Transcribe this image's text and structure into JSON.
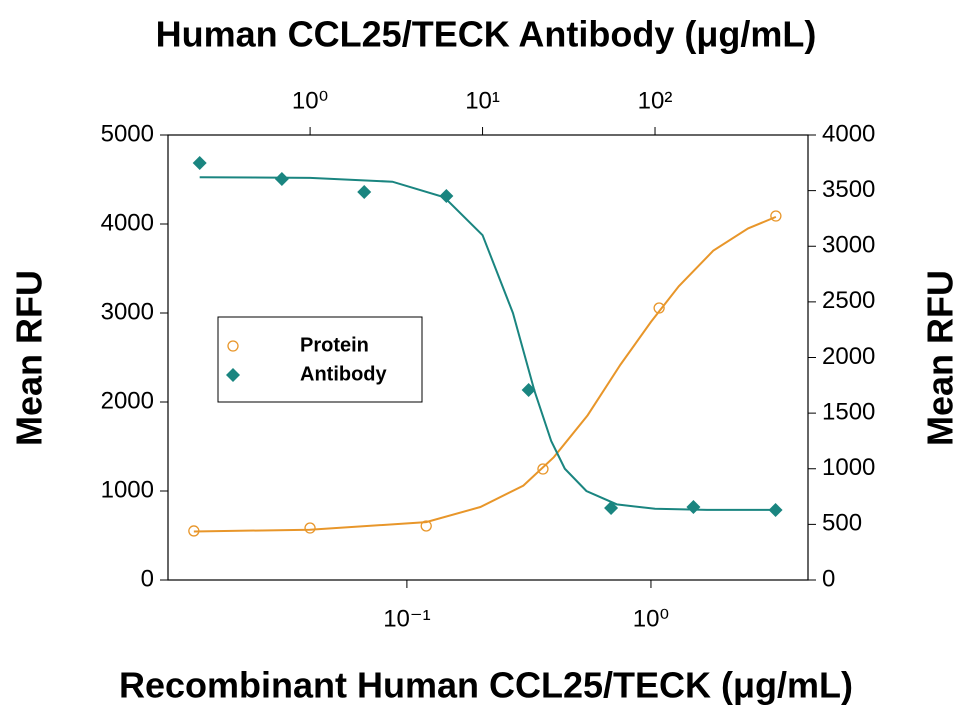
{
  "chart_data": {
    "type": "scatter",
    "title": "Human CCL25/TECK Antibody (μg/mL)",
    "x_label": "Recombinant Human CCL25/TECK (μg/mL)",
    "y_label": "Mean RFU",
    "y2_label": "Mean RFU",
    "xscale": "log",
    "x2scale": "log",
    "xlim": [
      0.0105,
      4.4
    ],
    "x2lim": [
      0.15,
      771
    ],
    "xticks": [
      {
        "value": 0.1,
        "label": "10⁻¹"
      },
      {
        "value": 1,
        "label": "10⁰"
      }
    ],
    "x2ticks": [
      {
        "value": 1,
        "label": "10⁰"
      },
      {
        "value": 10,
        "label": "10¹"
      },
      {
        "value": 100,
        "label": "10²"
      }
    ],
    "ylim": [
      0,
      5000
    ],
    "yticks": [
      0,
      1000,
      2000,
      3000,
      4000,
      5000
    ],
    "y2lim": [
      0,
      4000
    ],
    "y2ticks": [
      0,
      500,
      1000,
      1500,
      2000,
      2500,
      3000,
      3500,
      4000
    ],
    "legend": "center left",
    "series": [
      {
        "name": "Protein",
        "color": "#e8962a",
        "marker": "circle",
        "axis": "y",
        "xaxis": "x",
        "x": [
          0.0134,
          0.0401,
          0.12,
          0.361,
          1.08,
          3.25
        ],
        "values": [
          551,
          584,
          607,
          1247,
          3056,
          4090
        ],
        "fit_x": [
          0.0134,
          0.04,
          0.12,
          0.2,
          0.3,
          0.4,
          0.55,
          0.75,
          1.0,
          1.3,
          1.8,
          2.5,
          3.25
        ],
        "fit_values": [
          545,
          565,
          650,
          820,
          1060,
          1380,
          1850,
          2420,
          2900,
          3300,
          3700,
          3950,
          4080
        ]
      },
      {
        "name": "Antibody",
        "color": "#1a8580",
        "marker": "diamond",
        "axis": "y2",
        "xaxis": "x2",
        "x": [
          0.229,
          0.686,
          2.06,
          6.17,
          18.5,
          55.6,
          167,
          500
        ],
        "values": [
          3748,
          3604,
          3488,
          3452,
          1708,
          647,
          656,
          629
        ],
        "fit_x": [
          0.229,
          1,
          3,
          6,
          10,
          15,
          20,
          25,
          30,
          40,
          60,
          100,
          200,
          500
        ],
        "fit_values": [
          3620,
          3615,
          3580,
          3440,
          3100,
          2400,
          1700,
          1250,
          1000,
          800,
          680,
          640,
          630,
          630
        ]
      }
    ]
  }
}
